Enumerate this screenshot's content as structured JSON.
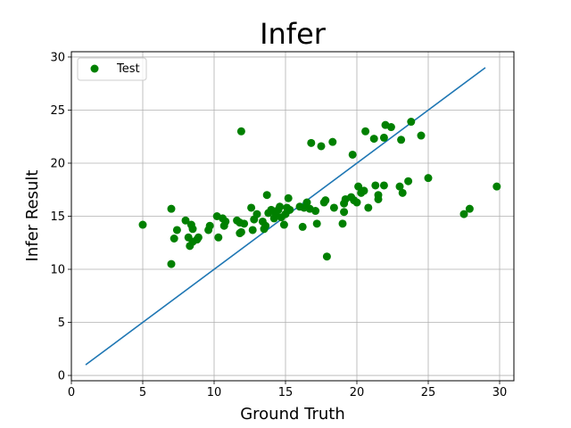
{
  "colors": {
    "scatter": "#008000",
    "fit_line": "#1f77b4",
    "grid": "#b0b0b0",
    "axes": "#000000",
    "background": "#ffffff"
  },
  "chart_data": {
    "type": "scatter",
    "title": "Infer",
    "xlabel": "Ground Truth",
    "ylabel": "Infer Result",
    "xlim": [
      0,
      31
    ],
    "ylim": [
      -0.5,
      30.5
    ],
    "xticks": [
      0,
      5,
      10,
      15,
      20,
      25,
      30
    ],
    "yticks": [
      0,
      5,
      10,
      15,
      20,
      25,
      30
    ],
    "grid": true,
    "legend": {
      "placement": "top-left",
      "entries": [
        "Test"
      ]
    },
    "series": [
      {
        "name": "Test",
        "type": "scatter",
        "color": "#008000",
        "points": [
          [
            5.0,
            14.2
          ],
          [
            7.0,
            10.5
          ],
          [
            7.0,
            15.7
          ],
          [
            7.2,
            12.9
          ],
          [
            7.4,
            13.7
          ],
          [
            8.0,
            14.6
          ],
          [
            8.2,
            13.0
          ],
          [
            8.3,
            12.2
          ],
          [
            8.4,
            14.2
          ],
          [
            8.5,
            12.6
          ],
          [
            8.5,
            13.8
          ],
          [
            8.8,
            12.8
          ],
          [
            8.9,
            13.0
          ],
          [
            9.6,
            13.7
          ],
          [
            9.7,
            14.1
          ],
          [
            10.2,
            15.0
          ],
          [
            10.3,
            13.0
          ],
          [
            10.6,
            14.8
          ],
          [
            10.7,
            14.1
          ],
          [
            10.8,
            14.5
          ],
          [
            11.6,
            14.6
          ],
          [
            11.8,
            13.4
          ],
          [
            11.8,
            14.4
          ],
          [
            11.9,
            23.0
          ],
          [
            11.9,
            13.5
          ],
          [
            12.1,
            14.3
          ],
          [
            12.6,
            15.8
          ],
          [
            12.7,
            13.7
          ],
          [
            12.8,
            14.7
          ],
          [
            13.0,
            15.2
          ],
          [
            13.4,
            14.5
          ],
          [
            13.5,
            13.8
          ],
          [
            13.6,
            14.1
          ],
          [
            13.7,
            17.0
          ],
          [
            13.8,
            15.3
          ],
          [
            14.0,
            15.6
          ],
          [
            14.2,
            14.8
          ],
          [
            14.3,
            15.3
          ],
          [
            14.5,
            15.6
          ],
          [
            14.6,
            15.9
          ],
          [
            14.7,
            14.9
          ],
          [
            14.9,
            14.2
          ],
          [
            15.0,
            15.2
          ],
          [
            15.1,
            15.8
          ],
          [
            15.2,
            16.7
          ],
          [
            15.3,
            15.6
          ],
          [
            16.0,
            15.9
          ],
          [
            16.2,
            14.0
          ],
          [
            16.3,
            15.8
          ],
          [
            16.5,
            16.3
          ],
          [
            16.7,
            15.7
          ],
          [
            16.8,
            21.9
          ],
          [
            17.1,
            15.5
          ],
          [
            17.2,
            14.3
          ],
          [
            17.5,
            21.6
          ],
          [
            17.7,
            16.3
          ],
          [
            17.8,
            16.5
          ],
          [
            17.9,
            11.2
          ],
          [
            18.3,
            22.0
          ],
          [
            18.4,
            15.8
          ],
          [
            19.0,
            14.3
          ],
          [
            19.1,
            16.2
          ],
          [
            19.1,
            15.4
          ],
          [
            19.2,
            16.6
          ],
          [
            19.6,
            16.8
          ],
          [
            19.7,
            20.8
          ],
          [
            19.8,
            16.5
          ],
          [
            20.0,
            16.3
          ],
          [
            20.1,
            17.8
          ],
          [
            20.3,
            17.2
          ],
          [
            20.5,
            17.4
          ],
          [
            20.6,
            23.0
          ],
          [
            20.8,
            15.8
          ],
          [
            21.2,
            22.3
          ],
          [
            21.3,
            17.9
          ],
          [
            21.5,
            16.6
          ],
          [
            21.5,
            17.0
          ],
          [
            21.9,
            22.4
          ],
          [
            21.9,
            17.9
          ],
          [
            22.0,
            23.6
          ],
          [
            22.4,
            23.4
          ],
          [
            23.0,
            17.8
          ],
          [
            23.1,
            22.2
          ],
          [
            23.2,
            17.2
          ],
          [
            23.6,
            18.3
          ],
          [
            23.8,
            23.9
          ],
          [
            24.5,
            22.6
          ],
          [
            25.0,
            18.6
          ],
          [
            27.5,
            15.2
          ],
          [
            27.9,
            15.7
          ],
          [
            29.8,
            17.8
          ]
        ]
      },
      {
        "type": "line",
        "color": "#1f77b4",
        "points": [
          [
            1,
            1
          ],
          [
            29,
            29
          ]
        ]
      }
    ]
  }
}
